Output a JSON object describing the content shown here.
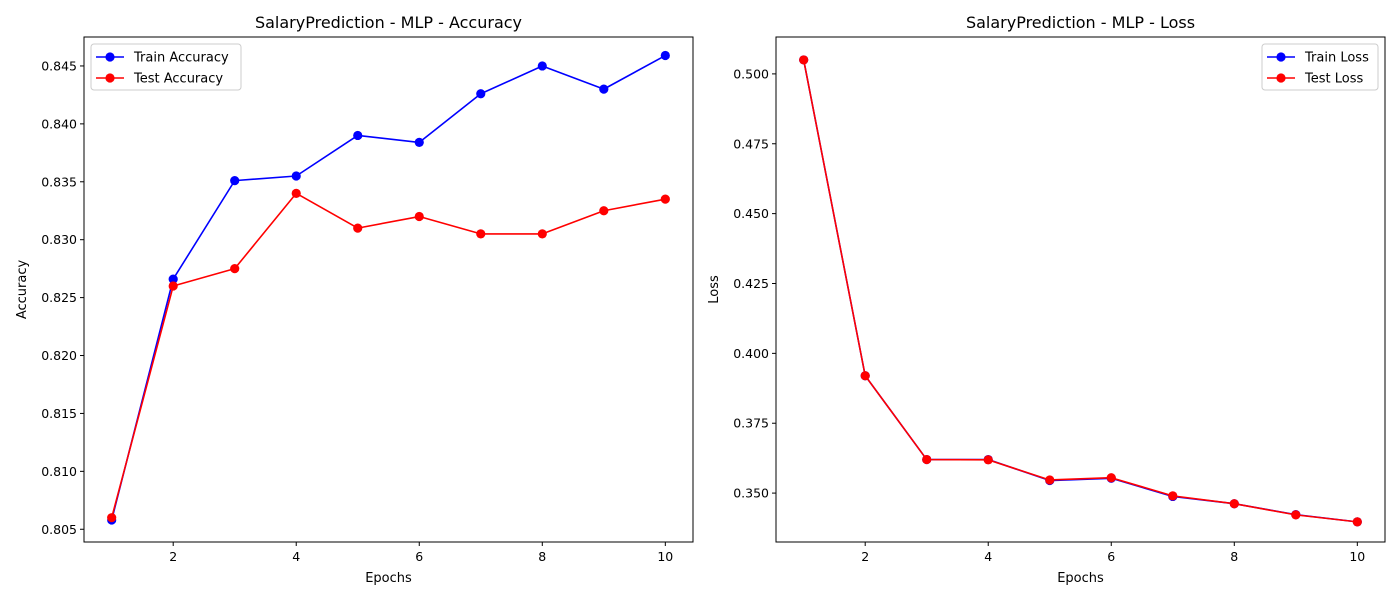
{
  "chart_data": [
    {
      "type": "line",
      "title": "SalaryPrediction - MLP - Accuracy",
      "xlabel": "Epochs",
      "ylabel": "Accuracy",
      "x": [
        1,
        2,
        3,
        4,
        5,
        6,
        7,
        8,
        9,
        10
      ],
      "xlim": [
        0.55,
        10.45
      ],
      "ylim": [
        0.8039,
        0.8475
      ],
      "xticks": [
        2,
        4,
        6,
        8,
        10
      ],
      "xtick_labels": [
        "2",
        "4",
        "6",
        "8",
        "10"
      ],
      "yticks": [
        0.805,
        0.81,
        0.815,
        0.82,
        0.825,
        0.83,
        0.835,
        0.84,
        0.845
      ],
      "ytick_labels": [
        "0.805",
        "0.810",
        "0.815",
        "0.820",
        "0.825",
        "0.830",
        "0.835",
        "0.840",
        "0.845"
      ],
      "grid": false,
      "legend": "upper-left",
      "series": [
        {
          "name": "Train Accuracy",
          "color": "#0000ff",
          "marker": "circle",
          "values": [
            0.8058,
            0.8266,
            0.8351,
            0.8355,
            0.839,
            0.8384,
            0.8426,
            0.845,
            0.843,
            0.8459
          ]
        },
        {
          "name": "Test Accuracy",
          "color": "#ff0000",
          "marker": "circle",
          "values": [
            0.806,
            0.826,
            0.8275,
            0.834,
            0.831,
            0.832,
            0.8305,
            0.8305,
            0.8325,
            0.8335
          ]
        }
      ]
    },
    {
      "type": "line",
      "title": "SalaryPrediction - MLP - Loss",
      "xlabel": "Epochs",
      "ylabel": "Loss",
      "x": [
        1,
        2,
        3,
        4,
        5,
        6,
        7,
        8,
        9,
        10
      ],
      "xlim": [
        0.55,
        10.45
      ],
      "ylim": [
        0.3325,
        0.5132
      ],
      "xticks": [
        2,
        4,
        6,
        8,
        10
      ],
      "xtick_labels": [
        "2",
        "4",
        "6",
        "8",
        "10"
      ],
      "yticks": [
        0.35,
        0.375,
        0.4,
        0.425,
        0.45,
        0.475,
        0.5
      ],
      "ytick_labels": [
        "0.350",
        "0.375",
        "0.400",
        "0.425",
        "0.450",
        "0.475",
        "0.500"
      ],
      "grid": false,
      "legend": "upper-right",
      "series": [
        {
          "name": "Train Loss",
          "color": "#0000ff",
          "marker": "circle",
          "values": [
            0.505,
            0.392,
            0.362,
            0.362,
            0.3545,
            0.3553,
            0.3488,
            0.3462,
            0.3423,
            0.3397
          ]
        },
        {
          "name": "Test Loss",
          "color": "#ff0000",
          "marker": "circle",
          "values": [
            0.505,
            0.392,
            0.362,
            0.3619,
            0.3547,
            0.3555,
            0.349,
            0.3462,
            0.3422,
            0.3397
          ]
        }
      ]
    }
  ]
}
